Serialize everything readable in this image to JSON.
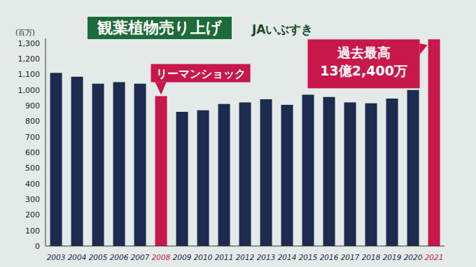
{
  "chart_data": {
    "type": "bar",
    "title": "観葉植物売り上げ",
    "subtitle": "JAいぶすき",
    "y_label": "(百万)",
    "categories": [
      "2003",
      "2004",
      "2005",
      "2006",
      "2007",
      "2008",
      "2009",
      "2010",
      "2011",
      "2012",
      "2013",
      "2014",
      "2015",
      "2016",
      "2017",
      "2018",
      "2019",
      "2020",
      "2021"
    ],
    "values": [
      1110,
      1085,
      1040,
      1050,
      1040,
      960,
      860,
      870,
      910,
      920,
      940,
      905,
      970,
      955,
      920,
      915,
      945,
      1000,
      1324
    ],
    "colors": [
      "#1c2b4f",
      "#1c2b4f",
      "#1c2b4f",
      "#1c2b4f",
      "#1c2b4f",
      "#c8174a",
      "#1c2b4f",
      "#1c2b4f",
      "#1c2b4f",
      "#1c2b4f",
      "#1c2b4f",
      "#1c2b4f",
      "#1c2b4f",
      "#1c2b4f",
      "#1c2b4f",
      "#1c2b4f",
      "#1c2b4f",
      "#1c2b4f",
      "#c8174a"
    ],
    "ylim": [
      0,
      1330
    ],
    "yticks": [
      0,
      100,
      200,
      300,
      400,
      500,
      600,
      700,
      800,
      900,
      {
        "value": 1000,
        "label": "1,000"
      },
      {
        "value": 1100,
        "label": "1,100"
      },
      {
        "value": 1200,
        "label": "1,200"
      },
      {
        "value": 1300,
        "label": "1,300"
      }
    ],
    "grid": false,
    "annotations": [
      {
        "category": "2008",
        "text": [
          "リーマンショック"
        ]
      },
      {
        "category": "2021",
        "text": [
          "過去最高",
          "13億2,400万"
        ]
      }
    ]
  }
}
